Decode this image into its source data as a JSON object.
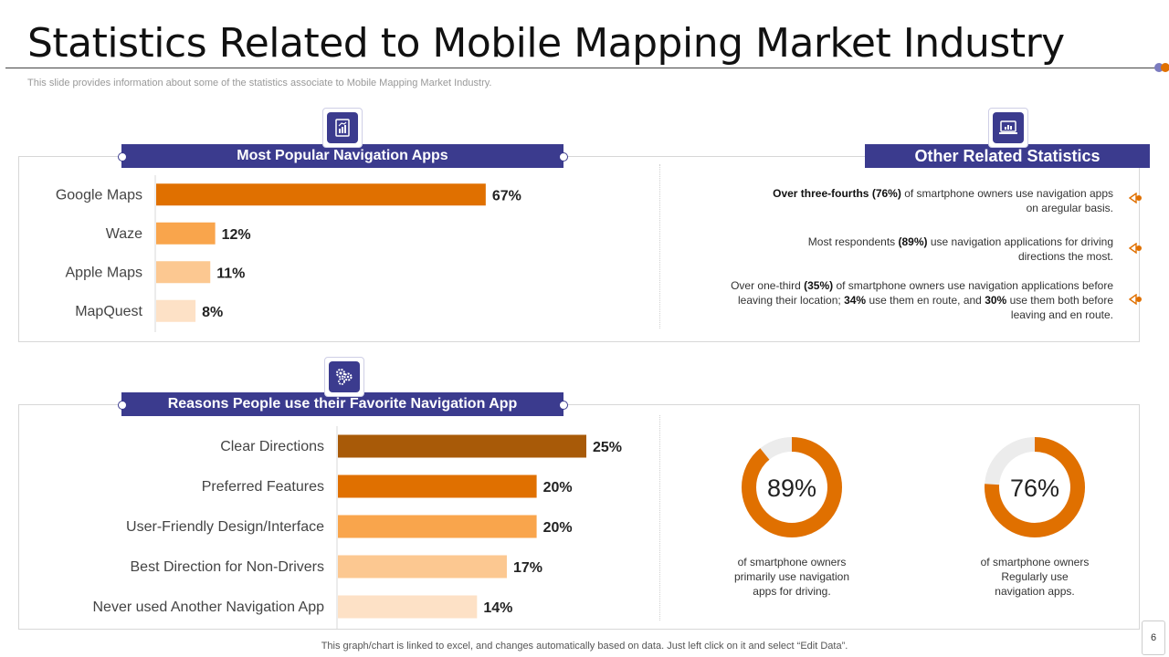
{
  "title": "Statistics Related to Mobile Mapping Market Industry",
  "subtitle": "This slide provides information about some of the statistics associate to Mobile Mapping Market Industry.",
  "colors": {
    "header": "#3b3b8e",
    "accent": "#e07000",
    "dot1": "#7b7bbf",
    "dot2": "#e07000"
  },
  "panels": {
    "apps_header": "Most  Popular Navigation Apps",
    "stats_header": "Other Related Statistics",
    "reasons_header": "Reasons People use their Favorite Navigation App"
  },
  "icons": {
    "apps": "document-chart-icon",
    "stats": "laptop-chart-icon",
    "reasons": "gears-icon"
  },
  "stats": [
    {
      "bold": "Over three-fourths",
      "pct": "(76%)",
      "rest1": "of smartphone owners use navigation apps",
      "line2": "on aregular  basis."
    },
    {
      "pre": "Most respondents",
      "pct": "(89%)",
      "rest1": "use navigation  applications for driving",
      "line2": "directions the most."
    },
    {
      "pre": "Over one-third",
      "pct": "(35%)",
      "rest1": "of smartphone owners use navigation  applications before",
      "line2_a": "leaving  their location;",
      "line2_b": "34%",
      "line2_c": "use them en route, and",
      "line2_d": "30%",
      "line2_e": "use them both before",
      "line3": "leaving and en route."
    }
  ],
  "donuts": [
    {
      "value": 89,
      "label": "89%",
      "caption1": "of smartphone owners",
      "caption2": "primarily use navigation",
      "caption3": "apps for driving."
    },
    {
      "value": 76,
      "label": "76%",
      "caption1": "of smartphone owners",
      "caption2": "Regularly use",
      "caption3": "navigation  apps."
    }
  ],
  "chart_data": [
    {
      "type": "bar",
      "orientation": "horizontal",
      "title": "Most  Popular Navigation Apps",
      "categories": [
        "Google Maps",
        "Waze",
        "Apple Maps",
        "MapQuest"
      ],
      "values": [
        67,
        12,
        11,
        8
      ],
      "labels": [
        "67%",
        "12%",
        "11%",
        "8%"
      ],
      "colors": [
        "#e07000",
        "#f9a54c",
        "#fcc891",
        "#fde1c6"
      ],
      "xlim": [
        0,
        70
      ]
    },
    {
      "type": "bar",
      "orientation": "horizontal",
      "title": "Reasons People use their Favorite Navigation App",
      "categories": [
        "Clear Directions",
        "Preferred Features",
        "User-Friendly Design/Interface",
        "Best Direction for Non-Drivers",
        "Never used Another Navigation App"
      ],
      "values": [
        25,
        20,
        20,
        17,
        14
      ],
      "labels": [
        "25%",
        "20%",
        "20%",
        "17%",
        "14%"
      ],
      "colors": [
        "#a85a08",
        "#e07000",
        "#f9a54c",
        "#fcc891",
        "#fde1c6"
      ],
      "xlim": [
        0,
        25
      ]
    }
  ],
  "footer": "This graph/chart is linked to excel,  and changes automatically based on data. Just left click on it and select “Edit Data”.",
  "page_number": "6"
}
